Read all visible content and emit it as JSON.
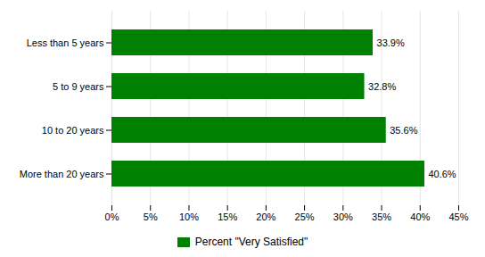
{
  "chart_data": {
    "type": "bar",
    "orientation": "horizontal",
    "categories": [
      "Less than 5 years",
      "5 to 9 years",
      "10 to 20 years",
      "More than 20 years"
    ],
    "series": [
      {
        "name": "Percent \"Very Satisfied\"",
        "color": "#008000",
        "values": [
          33.9,
          32.8,
          35.6,
          40.6
        ],
        "value_labels": [
          "33.9%",
          "32.8%",
          "35.6%",
          "40.6%"
        ]
      }
    ],
    "xlim": [
      0,
      45
    ],
    "xticks": [
      {
        "value": 0,
        "label": "0%"
      },
      {
        "value": 5,
        "label": "5%"
      },
      {
        "value": 10,
        "label": "10%"
      },
      {
        "value": 15,
        "label": "15%"
      },
      {
        "value": 20,
        "label": "20%"
      },
      {
        "value": 25,
        "label": "25%"
      },
      {
        "value": 30,
        "label": "30%"
      },
      {
        "value": 35,
        "label": "35%"
      },
      {
        "value": 40,
        "label": "40%"
      },
      {
        "value": 45,
        "label": "45%"
      }
    ],
    "grid": true,
    "data_labels": true,
    "legend": "bottom"
  }
}
